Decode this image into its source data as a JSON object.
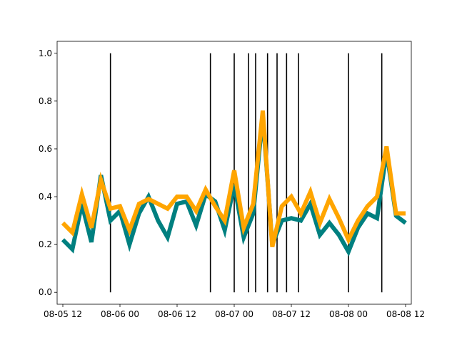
{
  "chart_data": {
    "type": "line",
    "title": "",
    "xlabel": "",
    "ylabel": "",
    "x_ticks": [
      {
        "t": "2023-08-05T12:00",
        "label": "08-05 12"
      },
      {
        "t": "2023-08-06T00:00",
        "label": "08-06 00"
      },
      {
        "t": "2023-08-06T12:00",
        "label": "08-06 12"
      },
      {
        "t": "2023-08-07T00:00",
        "label": "08-07 00"
      },
      {
        "t": "2023-08-07T12:00",
        "label": "08-07 12"
      },
      {
        "t": "2023-08-08T00:00",
        "label": "08-08 00"
      },
      {
        "t": "2023-08-08T12:00",
        "label": "08-08 12"
      }
    ],
    "y_ticks": [
      {
        "v": 0.0,
        "label": "0.0"
      },
      {
        "v": 0.2,
        "label": "0.2"
      },
      {
        "v": 0.4,
        "label": "0.4"
      },
      {
        "v": 0.6,
        "label": "0.6"
      },
      {
        "v": 0.8,
        "label": "0.8"
      },
      {
        "v": 1.0,
        "label": "1.0"
      }
    ],
    "xlim": [
      "2023-08-05T10:48",
      "2023-08-08T13:12"
    ],
    "ylim": [
      -0.05,
      1.05
    ],
    "grid": false,
    "vlines": {
      "color": "#000000",
      "ymin": 0,
      "ymax": 1,
      "x": [
        "2023-08-05T22:00",
        "2023-08-06T19:00",
        "2023-08-07T00:00",
        "2023-08-07T03:00",
        "2023-08-07T04:30",
        "2023-08-07T07:00",
        "2023-08-07T09:00",
        "2023-08-07T11:00",
        "2023-08-07T13:30",
        "2023-08-08T00:00",
        "2023-08-08T07:00"
      ]
    },
    "series": [
      {
        "color": "#008080",
        "x": [
          "2023-08-05T12:00",
          "2023-08-05T14:00",
          "2023-08-05T16:00",
          "2023-08-05T18:00",
          "2023-08-05T20:00",
          "2023-08-05T22:00",
          "2023-08-06T00:00",
          "2023-08-06T02:00",
          "2023-08-06T04:00",
          "2023-08-06T06:00",
          "2023-08-06T08:00",
          "2023-08-06T10:00",
          "2023-08-06T12:00",
          "2023-08-06T14:00",
          "2023-08-06T16:00",
          "2023-08-06T18:00",
          "2023-08-06T20:00",
          "2023-08-06T22:00",
          "2023-08-07T00:00",
          "2023-08-07T02:00",
          "2023-08-07T04:00",
          "2023-08-07T06:00",
          "2023-08-07T08:00",
          "2023-08-07T10:00",
          "2023-08-07T12:00",
          "2023-08-07T14:00",
          "2023-08-07T16:00",
          "2023-08-07T18:00",
          "2023-08-07T20:00",
          "2023-08-07T22:00",
          "2023-08-08T00:00",
          "2023-08-08T02:00",
          "2023-08-08T04:00",
          "2023-08-08T06:00",
          "2023-08-08T08:00",
          "2023-08-08T10:00",
          "2023-08-08T12:00"
        ],
        "values": [
          0.22,
          0.18,
          0.37,
          0.21,
          0.49,
          0.3,
          0.34,
          0.2,
          0.33,
          0.4,
          0.3,
          0.23,
          0.37,
          0.38,
          0.28,
          0.41,
          0.38,
          0.26,
          0.45,
          0.23,
          0.33,
          0.74,
          0.2,
          0.3,
          0.31,
          0.3,
          0.37,
          0.24,
          0.29,
          0.24,
          0.17,
          0.27,
          0.33,
          0.31,
          0.59,
          0.32,
          0.29
        ]
      },
      {
        "color": "#ffa500",
        "x": [
          "2023-08-05T12:00",
          "2023-08-05T14:00",
          "2023-08-05T16:00",
          "2023-08-05T18:00",
          "2023-08-05T20:00",
          "2023-08-05T22:00",
          "2023-08-06T00:00",
          "2023-08-06T02:00",
          "2023-08-06T04:00",
          "2023-08-06T06:00",
          "2023-08-06T08:00",
          "2023-08-06T10:00",
          "2023-08-06T12:00",
          "2023-08-06T14:00",
          "2023-08-06T16:00",
          "2023-08-06T18:00",
          "2023-08-06T20:00",
          "2023-08-06T22:00",
          "2023-08-07T00:00",
          "2023-08-07T02:00",
          "2023-08-07T04:00",
          "2023-08-07T06:00",
          "2023-08-07T08:00",
          "2023-08-07T10:00",
          "2023-08-07T12:00",
          "2023-08-07T14:00",
          "2023-08-07T16:00",
          "2023-08-07T18:00",
          "2023-08-07T20:00",
          "2023-08-07T22:00",
          "2023-08-08T00:00",
          "2023-08-08T02:00",
          "2023-08-08T04:00",
          "2023-08-08T06:00",
          "2023-08-08T08:00",
          "2023-08-08T10:00",
          "2023-08-08T12:00"
        ],
        "values": [
          0.29,
          0.25,
          0.41,
          0.27,
          0.47,
          0.35,
          0.36,
          0.26,
          0.37,
          0.39,
          0.37,
          0.35,
          0.4,
          0.4,
          0.34,
          0.43,
          0.36,
          0.3,
          0.51,
          0.27,
          0.37,
          0.76,
          0.19,
          0.36,
          0.4,
          0.33,
          0.42,
          0.29,
          0.39,
          0.31,
          0.22,
          0.3,
          0.36,
          0.4,
          0.61,
          0.33,
          0.33
        ]
      }
    ]
  }
}
